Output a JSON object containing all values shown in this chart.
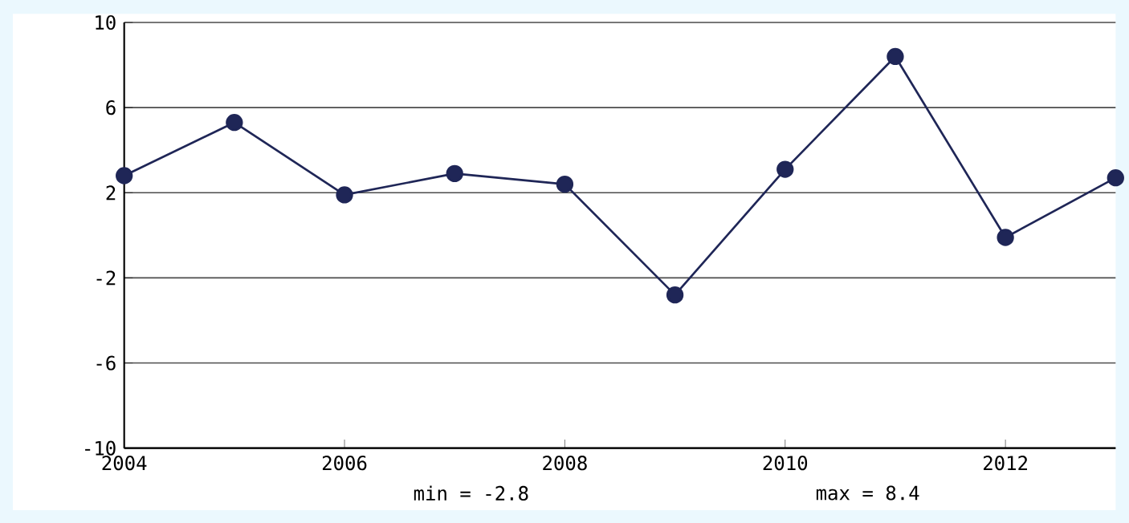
{
  "chart_data": {
    "type": "line",
    "x": [
      2004,
      2005,
      2006,
      2007,
      2008,
      2009,
      2010,
      2011,
      2012,
      2013
    ],
    "series": [
      {
        "color": "#1f2657",
        "values": [
          2.8,
          5.3,
          1.9,
          2.9,
          2.4,
          -2.8,
          3.1,
          8.4,
          -0.1,
          2.7
        ]
      }
    ],
    "xlim": [
      2004,
      2013
    ],
    "xticks": [
      2004,
      2006,
      2008,
      2010,
      2012
    ],
    "ylim": [
      -10,
      10
    ],
    "yticks": [
      -10,
      -6,
      -2,
      2,
      6,
      10
    ],
    "grid": "y",
    "marker": "circle",
    "line_style": "solid",
    "annotations": [
      "min = -2.8",
      "max = 8.4"
    ]
  }
}
